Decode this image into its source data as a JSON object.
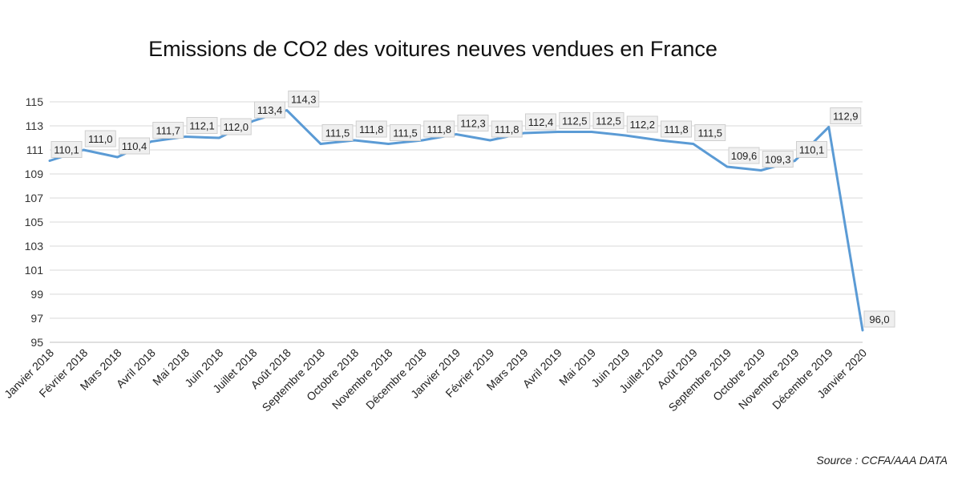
{
  "chart_data": {
    "type": "line",
    "title": "Emissions de CO2 des voitures neuves vendues en France",
    "source": "Source : CCFA/AAA DATA",
    "categories": [
      "Janvier 2018",
      "Février 2018",
      "Mars 2018",
      "Avril 2018",
      "Mai 2018",
      "Juin 2018",
      "Juillet 2018",
      "Août 2018",
      "Septembre 2018",
      "Octobre 2018",
      "Novembre 2018",
      "Décembre 2018",
      "Janvier 2019",
      "Février 2019",
      "Mars 2019",
      "Avril 2019",
      "Mai 2019",
      "Juin 2019",
      "Juillet 2019",
      "Août 2019",
      "Septembre 2019",
      "Octobre 2019",
      "Novembre 2019",
      "Décembre 2019",
      "Janvier 2020"
    ],
    "series": [
      {
        "name": "CO2",
        "values": [
          110.1,
          111.0,
          110.4,
          111.7,
          112.1,
          112.0,
          113.4,
          114.3,
          111.5,
          111.8,
          111.5,
          111.8,
          112.3,
          111.8,
          112.4,
          112.5,
          112.5,
          112.2,
          111.8,
          111.5,
          109.6,
          109.3,
          110.1,
          112.9,
          96.0
        ],
        "labels": [
          "110,1",
          "111,0",
          "110,4",
          "111,7",
          "112,1",
          "112,0",
          "113,4",
          "114,3",
          "111,5",
          "111,8",
          "111,5",
          "111,8",
          "112,3",
          "111,8",
          "112,4",
          "112,5",
          "112,5",
          "112,2",
          "111,8",
          "111,5",
          "109,6",
          "109,3",
          "110,1",
          "112,9",
          "96,0"
        ]
      }
    ],
    "yticks": [
      95,
      97,
      99,
      101,
      103,
      105,
      107,
      109,
      111,
      113,
      115
    ],
    "ylim": [
      95,
      115
    ],
    "xlabel": "",
    "ylabel": "",
    "grid": true,
    "line_color": "#5b9bd5"
  }
}
